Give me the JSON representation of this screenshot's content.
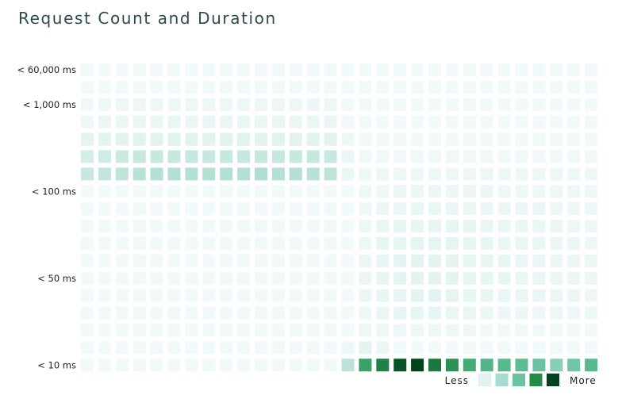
{
  "title": "Request Count and Duration",
  "chart_data": {
    "type": "heatmap",
    "title": "Request Count and Duration",
    "xlabel": "",
    "ylabel": "",
    "y_tick_labels": [
      "< 60,000 ms",
      "< 1,000 ms",
      "< 100 ms",
      "< 50 ms",
      "< 10 ms"
    ],
    "y_tick_rows": [
      0,
      2,
      7,
      12,
      17
    ],
    "n_rows": 18,
    "n_cols": 30,
    "grid": [
      [
        0.02,
        0.02,
        0.02,
        0.02,
        0.02,
        0.02,
        0.02,
        0.02,
        0.02,
        0.02,
        0.02,
        0.02,
        0.02,
        0.02,
        0.02,
        0.02,
        0.02,
        0.02,
        0.02,
        0.02,
        0.02,
        0.02,
        0.02,
        0.02,
        0.02,
        0.02,
        0.02,
        0.02,
        0.02,
        0.02
      ],
      [
        0.02,
        0.02,
        0.02,
        0.02,
        0.02,
        0.02,
        0.02,
        0.02,
        0.02,
        0.02,
        0.02,
        0.02,
        0.02,
        0.02,
        0.02,
        0.02,
        0.02,
        0.02,
        0.02,
        0.02,
        0.02,
        0.02,
        0.02,
        0.02,
        0.02,
        0.02,
        0.02,
        0.02,
        0.02,
        0.02
      ],
      [
        0.04,
        0.05,
        0.06,
        0.06,
        0.07,
        0.06,
        0.07,
        0.06,
        0.07,
        0.07,
        0.06,
        0.07,
        0.06,
        0.08,
        0.06,
        0.03,
        0.02,
        0.02,
        0.02,
        0.02,
        0.02,
        0.02,
        0.02,
        0.02,
        0.02,
        0.02,
        0.02,
        0.02,
        0.02,
        0.02
      ],
      [
        0.06,
        0.08,
        0.09,
        0.1,
        0.1,
        0.1,
        0.1,
        0.1,
        0.1,
        0.1,
        0.1,
        0.1,
        0.1,
        0.1,
        0.1,
        0.04,
        0.02,
        0.02,
        0.02,
        0.02,
        0.02,
        0.02,
        0.02,
        0.02,
        0.02,
        0.02,
        0.02,
        0.02,
        0.02,
        0.02
      ],
      [
        0.14,
        0.16,
        0.17,
        0.18,
        0.18,
        0.18,
        0.18,
        0.18,
        0.18,
        0.18,
        0.18,
        0.18,
        0.18,
        0.18,
        0.18,
        0.06,
        0.03,
        0.03,
        0.03,
        0.03,
        0.03,
        0.03,
        0.03,
        0.03,
        0.03,
        0.03,
        0.03,
        0.03,
        0.03,
        0.03
      ],
      [
        0.24,
        0.26,
        0.28,
        0.3,
        0.3,
        0.3,
        0.3,
        0.3,
        0.3,
        0.3,
        0.3,
        0.3,
        0.3,
        0.3,
        0.3,
        0.08,
        0.04,
        0.04,
        0.04,
        0.04,
        0.04,
        0.04,
        0.04,
        0.04,
        0.04,
        0.04,
        0.04,
        0.04,
        0.04,
        0.04
      ],
      [
        0.3,
        0.32,
        0.34,
        0.36,
        0.38,
        0.38,
        0.38,
        0.38,
        0.38,
        0.38,
        0.4,
        0.38,
        0.38,
        0.36,
        0.34,
        0.08,
        0.05,
        0.06,
        0.07,
        0.07,
        0.07,
        0.07,
        0.07,
        0.07,
        0.07,
        0.07,
        0.07,
        0.07,
        0.07,
        0.07
      ],
      [
        0.02,
        0.02,
        0.02,
        0.02,
        0.02,
        0.02,
        0.02,
        0.02,
        0.02,
        0.02,
        0.02,
        0.02,
        0.02,
        0.02,
        0.02,
        0.02,
        0.05,
        0.07,
        0.08,
        0.08,
        0.08,
        0.08,
        0.08,
        0.08,
        0.07,
        0.07,
        0.07,
        0.07,
        0.06,
        0.06
      ],
      [
        0.02,
        0.02,
        0.02,
        0.02,
        0.02,
        0.02,
        0.02,
        0.02,
        0.02,
        0.02,
        0.02,
        0.02,
        0.02,
        0.02,
        0.02,
        0.03,
        0.05,
        0.08,
        0.09,
        0.1,
        0.1,
        0.1,
        0.09,
        0.09,
        0.08,
        0.08,
        0.08,
        0.07,
        0.07,
        0.07
      ],
      [
        0.02,
        0.02,
        0.02,
        0.02,
        0.02,
        0.02,
        0.02,
        0.02,
        0.02,
        0.02,
        0.02,
        0.02,
        0.02,
        0.02,
        0.02,
        0.03,
        0.06,
        0.1,
        0.11,
        0.12,
        0.12,
        0.12,
        0.11,
        0.1,
        0.1,
        0.09,
        0.09,
        0.08,
        0.07,
        0.07
      ],
      [
        0.02,
        0.02,
        0.02,
        0.02,
        0.02,
        0.02,
        0.02,
        0.02,
        0.02,
        0.02,
        0.02,
        0.02,
        0.02,
        0.02,
        0.02,
        0.03,
        0.07,
        0.11,
        0.12,
        0.13,
        0.13,
        0.13,
        0.12,
        0.11,
        0.1,
        0.1,
        0.09,
        0.08,
        0.08,
        0.07
      ],
      [
        0.02,
        0.02,
        0.02,
        0.02,
        0.02,
        0.02,
        0.02,
        0.02,
        0.02,
        0.02,
        0.02,
        0.02,
        0.02,
        0.02,
        0.02,
        0.03,
        0.08,
        0.12,
        0.14,
        0.15,
        0.15,
        0.14,
        0.13,
        0.12,
        0.11,
        0.1,
        0.1,
        0.09,
        0.08,
        0.08
      ],
      [
        0.02,
        0.02,
        0.02,
        0.02,
        0.02,
        0.02,
        0.02,
        0.02,
        0.02,
        0.02,
        0.02,
        0.02,
        0.02,
        0.02,
        0.02,
        0.03,
        0.08,
        0.12,
        0.14,
        0.15,
        0.15,
        0.14,
        0.13,
        0.12,
        0.11,
        0.1,
        0.1,
        0.09,
        0.08,
        0.08
      ],
      [
        0.02,
        0.02,
        0.02,
        0.02,
        0.02,
        0.02,
        0.02,
        0.02,
        0.02,
        0.02,
        0.02,
        0.02,
        0.02,
        0.02,
        0.02,
        0.03,
        0.08,
        0.12,
        0.13,
        0.14,
        0.14,
        0.13,
        0.12,
        0.11,
        0.1,
        0.1,
        0.09,
        0.08,
        0.08,
        0.07
      ],
      [
        0.02,
        0.02,
        0.02,
        0.02,
        0.02,
        0.02,
        0.02,
        0.02,
        0.02,
        0.02,
        0.02,
        0.02,
        0.02,
        0.02,
        0.02,
        0.03,
        0.07,
        0.1,
        0.11,
        0.11,
        0.11,
        0.1,
        0.1,
        0.09,
        0.08,
        0.08,
        0.07,
        0.07,
        0.06,
        0.06
      ],
      [
        0.02,
        0.02,
        0.02,
        0.02,
        0.02,
        0.02,
        0.02,
        0.02,
        0.02,
        0.02,
        0.02,
        0.02,
        0.02,
        0.02,
        0.02,
        0.03,
        0.06,
        0.07,
        0.06,
        0.05,
        0.05,
        0.05,
        0.05,
        0.04,
        0.04,
        0.04,
        0.04,
        0.03,
        0.03,
        0.03
      ],
      [
        0.02,
        0.02,
        0.02,
        0.02,
        0.02,
        0.02,
        0.02,
        0.02,
        0.02,
        0.02,
        0.02,
        0.02,
        0.02,
        0.02,
        0.02,
        0.07,
        0.14,
        0.08,
        0.03,
        0.03,
        0.03,
        0.03,
        0.03,
        0.03,
        0.03,
        0.03,
        0.03,
        0.03,
        0.03,
        0.03
      ],
      [
        0.03,
        0.03,
        0.03,
        0.03,
        0.03,
        0.03,
        0.03,
        0.03,
        0.03,
        0.03,
        0.03,
        0.03,
        0.03,
        0.03,
        0.04,
        0.35,
        0.76,
        0.86,
        0.96,
        1.0,
        0.88,
        0.82,
        0.72,
        0.66,
        0.64,
        0.62,
        0.58,
        0.5,
        0.56,
        0.64
      ]
    ],
    "color_scale": [
      "#f4fafc",
      "#dff1ef",
      "#aeddd2",
      "#63bf9a",
      "#2f9a5a",
      "#00441b"
    ],
    "legend": {
      "less_label": "Less",
      "more_label": "More",
      "swatches": [
        "#e1f3f0",
        "#a6dccf",
        "#6cc3a0",
        "#238b45",
        "#00441b"
      ]
    }
  }
}
